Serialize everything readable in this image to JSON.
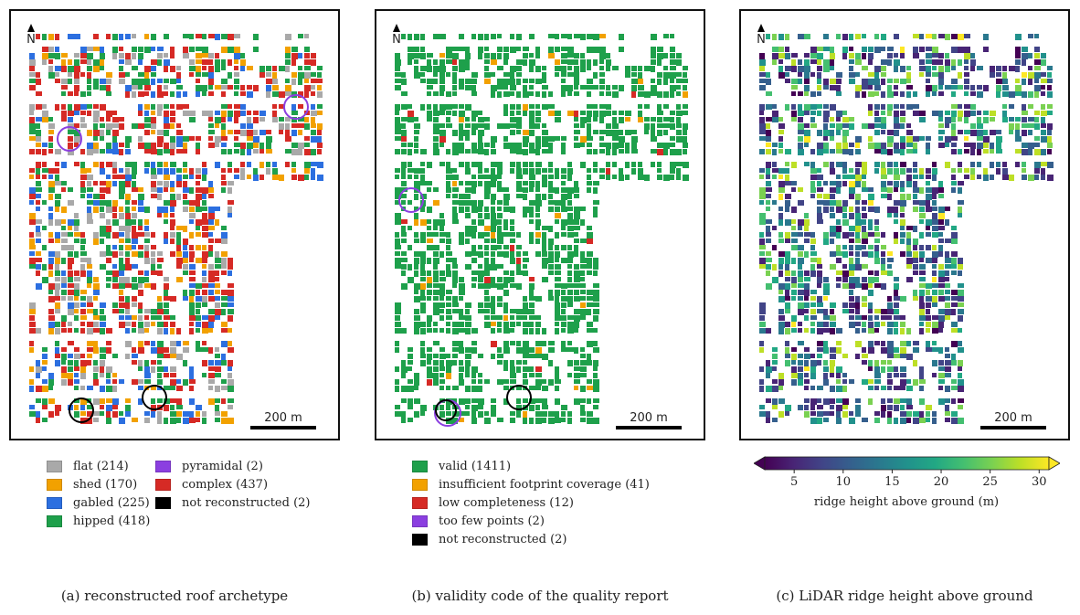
{
  "north_label": "N",
  "scale_label": "200 m",
  "colors": {
    "flat": "#a9a9a9",
    "shed": "#f2a100",
    "gabled": "#2c6fe0",
    "hipped": "#1ea04b",
    "pyramidal": "#8b3fe0",
    "complex": "#d62a25",
    "not_reconstructed": "#000000",
    "valid": "#1ea04b",
    "insufficient": "#f2a100",
    "low_completeness": "#d62a25",
    "too_few_points": "#8b3fe0"
  },
  "panel_a": {
    "caption": "(a) reconstructed roof archetype",
    "legend_col1": [
      {
        "label": "flat (214)",
        "color": "#a9a9a9"
      },
      {
        "label": "shed (170)",
        "color": "#f2a100"
      },
      {
        "label": "gabled (225)",
        "color": "#2c6fe0"
      },
      {
        "label": "hipped (418)",
        "color": "#1ea04b"
      }
    ],
    "legend_col2": [
      {
        "label": "pyramidal (2)",
        "color": "#8b3fe0"
      },
      {
        "label": "complex (437)",
        "color": "#d62a25"
      },
      {
        "label": "not reconstructed (2)",
        "color": "#000000"
      }
    ]
  },
  "panel_b": {
    "caption": "(b) validity code of the quality report",
    "legend": [
      {
        "label": "valid (1411)",
        "color": "#1ea04b"
      },
      {
        "label": "insufficient footprint coverage (41)",
        "color": "#f2a100"
      },
      {
        "label": "low completeness (12)",
        "color": "#d62a25"
      },
      {
        "label": "too few points (2)",
        "color": "#8b3fe0"
      },
      {
        "label": "not reconstructed (2)",
        "color": "#000000"
      }
    ]
  },
  "panel_c": {
    "caption": "(c) LiDAR ridge height above ground",
    "colorbar": {
      "label": "ridge height above ground (m)",
      "min": 2,
      "max": 31,
      "ticks": [
        "5",
        "10",
        "15",
        "20",
        "25",
        "30"
      ],
      "tick_values": [
        5,
        10,
        15,
        20,
        25,
        30
      ],
      "colormap": "viridis",
      "extend": "both"
    }
  }
}
